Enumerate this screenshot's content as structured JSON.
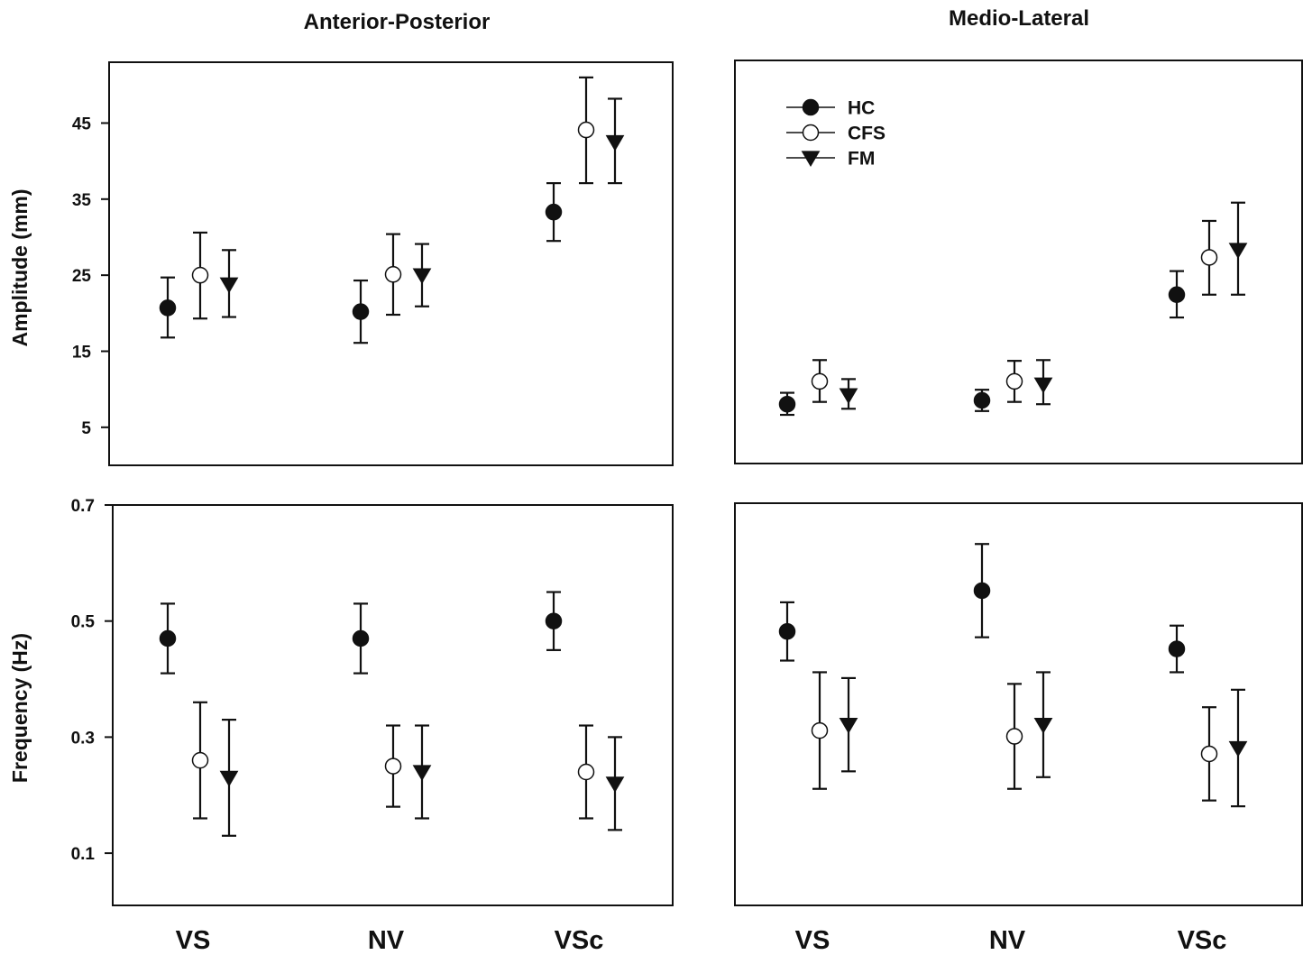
{
  "column_titles": [
    "Anterior-Posterior",
    "Medio-Lateral"
  ],
  "y_labels": {
    "amplitude": "Amplitude (mm)",
    "frequency": "Frequency (Hz)"
  },
  "categories": [
    "VS",
    "NV",
    "VSc"
  ],
  "legend": [
    {
      "name": "HC",
      "marker": "filled-circle"
    },
    {
      "name": "CFS",
      "marker": "open-circle"
    },
    {
      "name": "FM",
      "marker": "filled-triangle-down"
    }
  ],
  "colors": {
    "ink": "#111111",
    "open_fill": "#ffffff"
  },
  "chart_data": [
    {
      "type": "scatter",
      "panel": "amplitude-ap",
      "title": "Anterior-Posterior",
      "ylabel": "Amplitude (mm)",
      "xlabel": "",
      "categories": [
        "VS",
        "NV",
        "VSc"
      ],
      "ylim": [
        0,
        53
      ],
      "yticks": [
        5,
        15,
        25,
        35,
        45
      ],
      "series": [
        {
          "name": "HC",
          "values": [
            20.7,
            20.2,
            33.3
          ],
          "err_low": [
            16.8,
            16.1,
            29.5
          ],
          "err_high": [
            24.7,
            24.3,
            37.1
          ]
        },
        {
          "name": "CFS",
          "values": [
            25.0,
            25.1,
            44.1
          ],
          "err_low": [
            19.3,
            19.8,
            37.1
          ],
          "err_high": [
            30.6,
            30.4,
            51.0
          ]
        },
        {
          "name": "FM",
          "values": [
            23.8,
            25.0,
            42.5
          ],
          "err_low": [
            19.5,
            20.9,
            37.1
          ],
          "err_high": [
            28.3,
            29.1,
            48.2
          ]
        }
      ]
    },
    {
      "type": "scatter",
      "panel": "amplitude-ml",
      "title": "Medio-Lateral",
      "ylabel": "",
      "xlabel": "",
      "categories": [
        "VS",
        "NV",
        "VSc"
      ],
      "ylim": [
        0,
        53
      ],
      "yticks": [
        5,
        15,
        25,
        35,
        45
      ],
      "series": [
        {
          "name": "HC",
          "values": [
            7.8,
            8.3,
            22.2
          ],
          "err_low": [
            6.4,
            6.9,
            19.2
          ],
          "err_high": [
            9.3,
            9.7,
            25.3
          ]
        },
        {
          "name": "CFS",
          "values": [
            10.8,
            10.8,
            27.1
          ],
          "err_low": [
            8.1,
            8.1,
            22.2
          ],
          "err_high": [
            13.6,
            13.5,
            31.9
          ]
        },
        {
          "name": "FM",
          "values": [
            9.0,
            10.4,
            28.1
          ],
          "err_low": [
            7.2,
            7.8,
            22.2
          ],
          "err_high": [
            11.1,
            13.6,
            34.3
          ]
        }
      ]
    },
    {
      "type": "scatter",
      "panel": "frequency-ap",
      "title": "",
      "ylabel": "Frequency (Hz)",
      "xlabel": "",
      "categories": [
        "VS",
        "NV",
        "VSc"
      ],
      "ylim": [
        0.01,
        0.7
      ],
      "yticks": [
        0.1,
        0.3,
        0.5,
        0.7
      ],
      "series": [
        {
          "name": "HC",
          "values": [
            0.47,
            0.47,
            0.5
          ],
          "err_low": [
            0.41,
            0.41,
            0.45
          ],
          "err_high": [
            0.53,
            0.53,
            0.55
          ]
        },
        {
          "name": "CFS",
          "values": [
            0.26,
            0.25,
            0.24
          ],
          "err_low": [
            0.16,
            0.18,
            0.16
          ],
          "err_high": [
            0.36,
            0.32,
            0.32
          ]
        },
        {
          "name": "FM",
          "values": [
            0.23,
            0.24,
            0.22
          ],
          "err_low": [
            0.13,
            0.16,
            0.14
          ],
          "err_high": [
            0.33,
            0.32,
            0.3
          ]
        }
      ]
    },
    {
      "type": "scatter",
      "panel": "frequency-ml",
      "title": "",
      "ylabel": "",
      "xlabel": "",
      "categories": [
        "VS",
        "NV",
        "VSc"
      ],
      "ylim": [
        0.01,
        0.7
      ],
      "yticks": [
        0.1,
        0.3,
        0.5,
        0.7
      ],
      "series": [
        {
          "name": "HC",
          "values": [
            0.48,
            0.55,
            0.45
          ],
          "err_low": [
            0.43,
            0.47,
            0.41
          ],
          "err_high": [
            0.53,
            0.63,
            0.49
          ]
        },
        {
          "name": "CFS",
          "values": [
            0.31,
            0.3,
            0.27
          ],
          "err_low": [
            0.21,
            0.21,
            0.19
          ],
          "err_high": [
            0.41,
            0.39,
            0.35
          ]
        },
        {
          "name": "FM",
          "values": [
            0.32,
            0.32,
            0.28
          ],
          "err_low": [
            0.24,
            0.23,
            0.18
          ],
          "err_high": [
            0.4,
            0.41,
            0.38
          ]
        }
      ]
    }
  ]
}
